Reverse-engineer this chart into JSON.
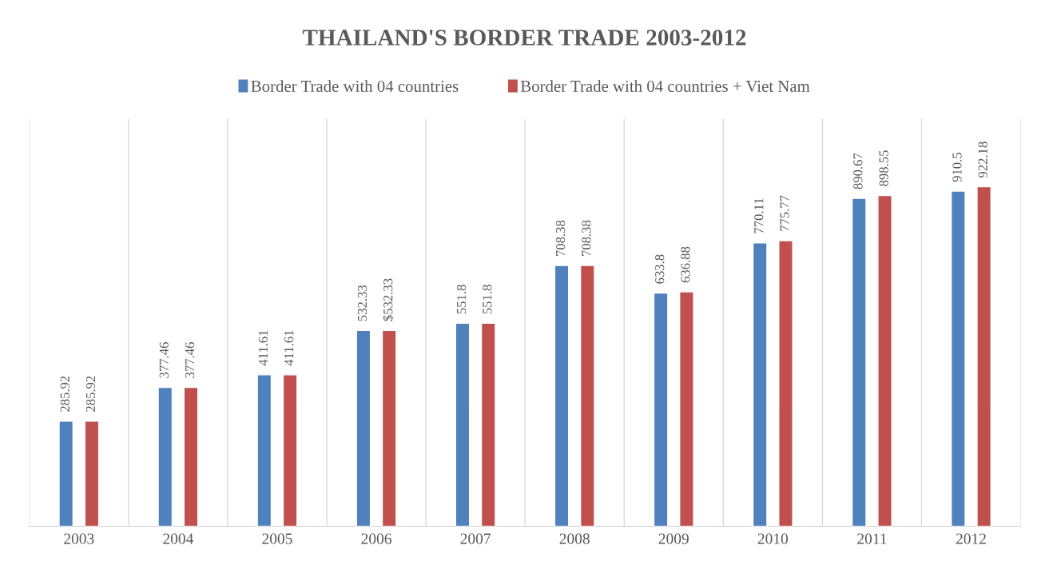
{
  "chart_data": {
    "type": "bar",
    "title": "THAILAND'S BORDER TRADE 2003-2012",
    "categories": [
      "2003",
      "2004",
      "2005",
      "2006",
      "2007",
      "2008",
      "2009",
      "2010",
      "2011",
      "2012"
    ],
    "series": [
      {
        "name": "Border Trade with 04 countries",
        "color": "#4f81bd",
        "values": [
          285.92,
          377.46,
          411.61,
          532.33,
          551.8,
          708.38,
          633.8,
          770.11,
          890.67,
          910.5
        ],
        "value_labels": [
          "285.92",
          "377.46",
          "411.61",
          "532.33",
          "551.8",
          "708.38",
          "633.8",
          "770.11",
          "890.67",
          "910.5"
        ]
      },
      {
        "name": "Border Trade with 04 countries + Viet Nam",
        "color": "#c0504d",
        "values": [
          285.92,
          377.46,
          411.61,
          532.33,
          551.8,
          708.38,
          636.88,
          775.77,
          898.55,
          922.18
        ],
        "value_labels": [
          "285.92",
          "377.46",
          "411.61",
          "$532.33",
          "551.8",
          "708.38",
          "636.88",
          "775.77",
          "898.55",
          "922.18"
        ]
      }
    ],
    "grid": "x",
    "legend": "top",
    "tick_labels": "x"
  }
}
